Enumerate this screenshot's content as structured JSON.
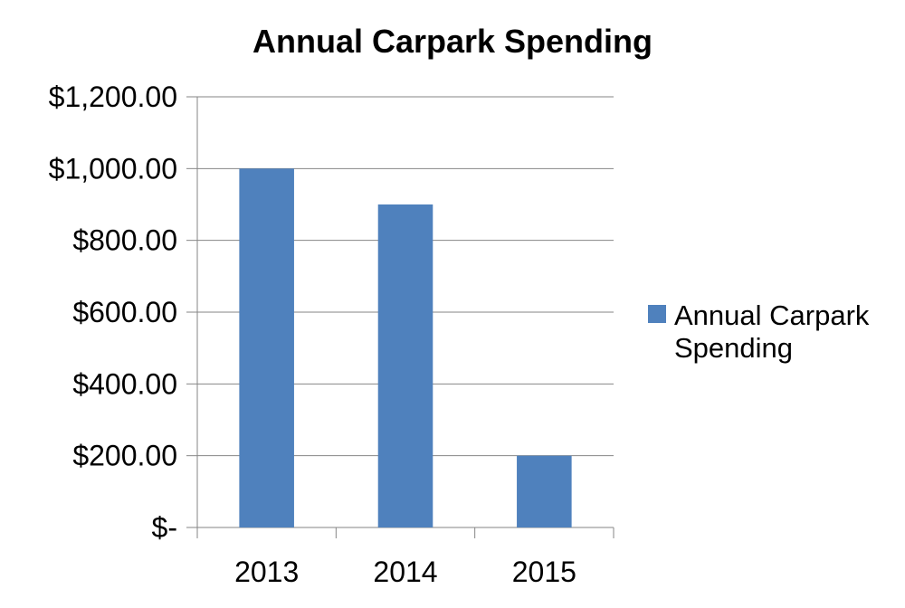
{
  "chart_data": {
    "type": "bar",
    "title": "Annual Carpark Spending",
    "xlabel": "",
    "ylabel": "",
    "categories": [
      "2013",
      "2014",
      "2015"
    ],
    "series": [
      {
        "name": "Annual Carpark Spending",
        "values": [
          1000,
          900,
          200
        ],
        "color": "#4F81BD"
      }
    ],
    "ylim": [
      0,
      1200
    ],
    "y_ticks": [
      0,
      200,
      400,
      600,
      800,
      1000,
      1200
    ],
    "y_tick_labels": [
      "$-",
      "$200.00",
      "$400.00",
      "$600.00",
      "$800.00",
      "$1,000.00",
      "$1,200.00"
    ],
    "grid": true,
    "legend": {
      "position": "right",
      "lines": [
        "Annual Carpark",
        "Spending"
      ]
    }
  }
}
